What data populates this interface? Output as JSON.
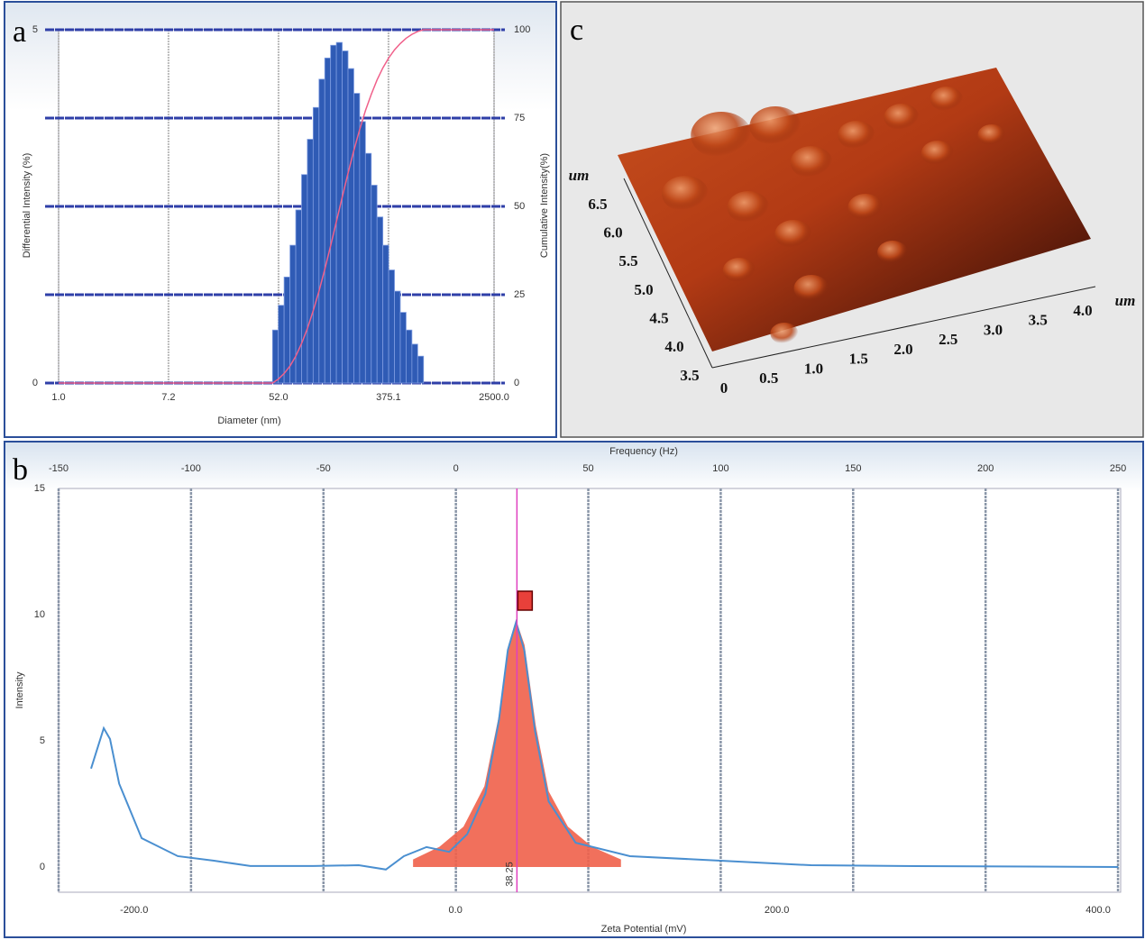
{
  "chart_data": [
    {
      "type": "histogram",
      "panel_label": "a",
      "xlabel": "Diameter (nm)",
      "ylabel": "Differential Intensity (%)",
      "y2label": "Cumulative Intensity(%)",
      "xscale": "log",
      "xlim": [
        1,
        2500
      ],
      "xticks": [
        {
          "value": 1,
          "label": "1.0"
        },
        7.2,
        {
          "value": 52,
          "label": "52.0"
        },
        375.1,
        {
          "value": 2500,
          "label": "2500.0"
        }
      ],
      "ylim": [
        0,
        5
      ],
      "yticks": [
        0,
        5
      ],
      "y2lim": [
        0,
        100
      ],
      "y2ticks": [
        0,
        25,
        50,
        75,
        100
      ],
      "grid": true,
      "bins": [
        46.7,
        51.8,
        57.5,
        63.9,
        70.9,
        78.7,
        87.3,
        96.9,
        107.6,
        119.4,
        132.5,
        147.1,
        163.3,
        181.3,
        201.2,
        223.3,
        247.9,
        275.2,
        305.4,
        339.0,
        376.3,
        417.7,
        463.7,
        514.7,
        571.3,
        634.1,
        703.9
      ],
      "values": [
        0.75,
        1.1,
        1.5,
        1.95,
        2.45,
        2.95,
        3.45,
        3.9,
        4.3,
        4.6,
        4.78,
        4.82,
        4.7,
        4.45,
        4.1,
        3.7,
        3.25,
        2.8,
        2.35,
        1.95,
        1.6,
        1.3,
        1.0,
        0.75,
        0.55,
        0.38
      ],
      "color": "#2f5bb5",
      "cumulative": {
        "axis": "y2",
        "color": "#f0608a",
        "x": [
          1,
          46.7,
          51.8,
          57.5,
          63.9,
          70.9,
          78.7,
          87.3,
          96.9,
          107.6,
          119.4,
          132.5,
          147.1,
          163.3,
          181.3,
          201.2,
          223.3,
          247.9,
          275.2,
          305.4,
          339.0,
          376.3,
          417.7,
          463.7,
          514.7,
          571.3,
          634.1,
          703.9,
          2500
        ],
        "values": [
          0,
          0,
          1.1,
          2.7,
          4.8,
          7.6,
          11.2,
          15.4,
          20.4,
          26.0,
          32.2,
          38.8,
          45.7,
          52.6,
          59.4,
          65.8,
          71.7,
          77.1,
          81.7,
          85.8,
          89.2,
          92.0,
          94.3,
          96.1,
          97.6,
          98.7,
          99.5,
          100,
          100
        ]
      }
    },
    {
      "type": "line",
      "panel_label": "b",
      "xlabel": "Zeta Potential (mV)",
      "x2label": "Frequency (Hz)",
      "ylabel": "Intensity",
      "xlim": [
        -247,
        414
      ],
      "xticks": [
        {
          "value": -200,
          "label": "-200.0"
        },
        {
          "value": 0,
          "label": "0.0"
        },
        {
          "value": 200,
          "label": "200.0"
        },
        {
          "value": 400,
          "label": "400.0"
        }
      ],
      "x2lim": [
        -150,
        251
      ],
      "x2ticks": [
        -150,
        -100,
        -50,
        0,
        50,
        100,
        150,
        200,
        250
      ],
      "ylim": [
        -1,
        15
      ],
      "yticks": [
        0,
        5,
        10,
        15
      ],
      "grid": true,
      "series": [
        {
          "color": "#f0604a",
          "fill": true,
          "x": [
            -26.4,
            -10,
            5,
            18,
            27,
            33,
            37.7,
            43,
            50,
            58,
            70,
            85,
            103
          ],
          "values": [
            0.3,
            0.8,
            1.6,
            3.2,
            6,
            8.8,
            9.8,
            8.8,
            5.6,
            3,
            1.6,
            0.8,
            0.3
          ]
        },
        {
          "color": "#4a8fd0",
          "fill": false,
          "x": [
            -226.8,
            -218.9,
            -215,
            -209.3,
            -195.3,
            -172.8,
            -150.3,
            -127.7,
            -88.4,
            -60.2,
            -43.3,
            -32.1,
            -18,
            -3.9,
            7.3,
            18.6,
            27,
            32.6,
            37.7,
            42.8,
            49.5,
            58,
            74.8,
            108.6,
            164.9,
            221.2,
            277.4,
            412.5
          ],
          "values": [
            3.9,
            5.5,
            5.07,
            3.3,
            1.14,
            0.43,
            0.25,
            0.04,
            0.04,
            0.07,
            -0.1,
            0.43,
            0.79,
            0.6,
            1.3,
            2.9,
            5.8,
            8.6,
            9.7,
            8.6,
            5.4,
            2.6,
            0.96,
            0.43,
            0.25,
            0.07,
            0.04,
            0
          ]
        }
      ],
      "peak": 38.25,
      "peak_color": "#e040c0"
    },
    {
      "type": "surface",
      "panel_label": "c",
      "xlabel": "um",
      "ylabel": "um",
      "xlim": [
        0,
        4
      ],
      "xticks": [
        0,
        0.5,
        {
          "value": 1,
          "label": "1.0"
        },
        1.5,
        {
          "value": 2,
          "label": "2.0"
        },
        2.5,
        {
          "value": 3,
          "label": "3.0"
        },
        3.5,
        {
          "value": 4,
          "label": "4.0"
        }
      ],
      "ylim": [
        3.5,
        6.5
      ],
      "yticks": [
        3.5,
        {
          "value": 4,
          "label": "4.0"
        },
        4.5,
        {
          "value": 5,
          "label": "5.0"
        },
        5.5,
        {
          "value": 6,
          "label": "6.0"
        },
        6.5
      ]
    }
  ]
}
